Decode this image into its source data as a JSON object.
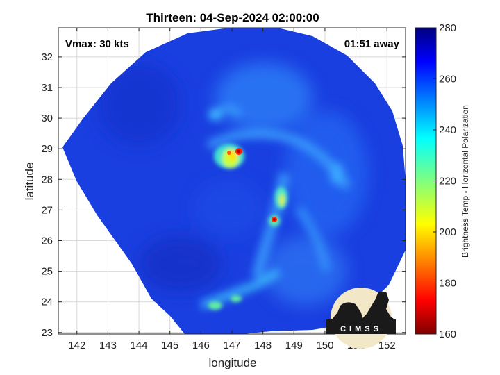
{
  "title": "Thirteen: 04-Sep-2024 02:00:00",
  "annotations": {
    "vmax": "Vmax: 30 kts",
    "time_away": "01:51 away"
  },
  "logo": {
    "text": "CIMSS"
  },
  "chart_data": {
    "type": "heatmap",
    "title": "Thirteen: 04-Sep-2024 02:00:00",
    "xlabel": "longitude",
    "ylabel": "latitude",
    "xlim": [
      141.4,
      152.6
    ],
    "ylim": [
      22.95,
      32.95
    ],
    "xticks": [
      142,
      143,
      144,
      145,
      146,
      147,
      148,
      149,
      150,
      151,
      152
    ],
    "yticks": [
      23,
      24,
      25,
      26,
      27,
      28,
      29,
      30,
      31,
      32
    ],
    "grid": true,
    "colorbar": {
      "label": "Brightness Temp - Horizontal Polarization",
      "min": 160,
      "max": 280,
      "ticks": [
        160,
        180,
        200,
        220,
        240,
        260,
        280
      ],
      "colormap": "jet"
    },
    "center": {
      "lon": 146.8,
      "lat": 28.7
    },
    "features": [
      {
        "name": "cold core",
        "lon": 147.2,
        "lat": 28.9,
        "value": 175
      },
      {
        "name": "cold cell",
        "lon": 148.4,
        "lat": 26.7,
        "value": 178
      },
      {
        "name": "rain band",
        "lon": 148.5,
        "lat": 27.4,
        "value": 215
      },
      {
        "name": "southern band",
        "lon": 146.8,
        "lat": 23.9,
        "value": 228
      }
    ],
    "background_value": 262
  }
}
